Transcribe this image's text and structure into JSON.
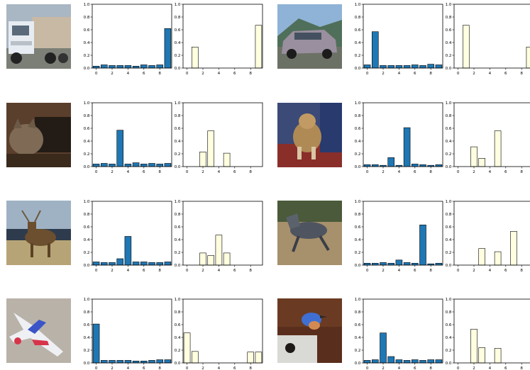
{
  "images": [
    {
      "name": "truck-image"
    },
    {
      "name": "car-image"
    },
    {
      "name": "cat-image"
    },
    {
      "name": "dog-image"
    },
    {
      "name": "deer-image"
    },
    {
      "name": "horse-image"
    },
    {
      "name": "airplane-image"
    },
    {
      "name": "bird-image"
    }
  ],
  "chart_data": [
    {
      "type": "bar",
      "row": 0,
      "col": 0,
      "color": "#1f77b4",
      "categories": [
        0,
        1,
        2,
        3,
        4,
        5,
        6,
        7,
        8,
        9
      ],
      "values": [
        0.03,
        0.05,
        0.04,
        0.04,
        0.04,
        0.03,
        0.05,
        0.04,
        0.05,
        0.62
      ],
      "ylim": [
        0,
        1.0
      ],
      "yticks": [
        "0.0",
        "0.2",
        "0.4",
        "0.6",
        "0.8",
        "1.0"
      ],
      "xticks": [
        "0",
        "2",
        "4",
        "6",
        "8"
      ],
      "xlim": [
        -0.5,
        9.5
      ]
    },
    {
      "type": "bar",
      "row": 0,
      "col": 1,
      "color": "#ffffe0",
      "categories": [
        0,
        1,
        2,
        3,
        4,
        5,
        6,
        7,
        8,
        9
      ],
      "values": [
        0,
        0.33,
        0,
        0,
        0,
        0,
        0,
        0,
        0,
        0.67
      ],
      "ylim": [
        0,
        1.0
      ],
      "yticks": [
        "0.0",
        "0.2",
        "0.4",
        "0.6",
        "0.8",
        "1.0"
      ],
      "xticks": [
        "0",
        "2",
        "4",
        "6",
        "8"
      ],
      "xlim": [
        -0.5,
        9.5
      ]
    },
    {
      "type": "bar",
      "row": 0,
      "col": 2,
      "color": "#1f77b4",
      "categories": [
        0,
        1,
        2,
        3,
        4,
        5,
        6,
        7,
        8,
        9
      ],
      "values": [
        0.05,
        0.57,
        0.04,
        0.04,
        0.04,
        0.04,
        0.05,
        0.04,
        0.06,
        0.05
      ],
      "ylim": [
        0,
        1.0
      ],
      "yticks": [
        "0.0",
        "0.2",
        "0.4",
        "0.6",
        "0.8",
        "1.0"
      ],
      "xticks": [
        "0",
        "2",
        "4",
        "6",
        "8"
      ],
      "xlim": [
        -0.5,
        9.5
      ]
    },
    {
      "type": "bar",
      "row": 0,
      "col": 3,
      "color": "#ffffe0",
      "categories": [
        0,
        1,
        2,
        3,
        4,
        5,
        6,
        7,
        8,
        9
      ],
      "values": [
        0,
        0.67,
        0,
        0,
        0,
        0,
        0,
        0,
        0,
        0.33
      ],
      "ylim": [
        0,
        1.0
      ],
      "yticks": [
        "0.0",
        "0.2",
        "0.4",
        "0.6",
        "0.8",
        "1.0"
      ],
      "xticks": [
        "0",
        "2",
        "4",
        "6",
        "8"
      ],
      "xlim": [
        -0.5,
        9.5
      ]
    },
    {
      "type": "bar",
      "row": 1,
      "col": 0,
      "color": "#1f77b4",
      "categories": [
        0,
        1,
        2,
        3,
        4,
        5,
        6,
        7,
        8,
        9
      ],
      "values": [
        0.04,
        0.05,
        0.04,
        0.57,
        0.04,
        0.06,
        0.04,
        0.05,
        0.04,
        0.05
      ],
      "ylim": [
        0,
        1.0
      ],
      "yticks": [
        "0.0",
        "0.2",
        "0.4",
        "0.6",
        "0.8",
        "1.0"
      ],
      "xticks": [
        "0",
        "2",
        "4",
        "6",
        "8"
      ],
      "xlim": [
        -0.5,
        9.5
      ]
    },
    {
      "type": "bar",
      "row": 1,
      "col": 1,
      "color": "#ffffe0",
      "categories": [
        0,
        1,
        2,
        3,
        4,
        5,
        6,
        7,
        8,
        9
      ],
      "values": [
        0,
        0,
        0.23,
        0.56,
        0,
        0.21,
        0,
        0,
        0,
        0
      ],
      "ylim": [
        0,
        1.0
      ],
      "yticks": [
        "0.0",
        "0.2",
        "0.4",
        "0.6",
        "0.8",
        "1.0"
      ],
      "xticks": [
        "0",
        "2",
        "4",
        "6",
        "8"
      ],
      "xlim": [
        -0.5,
        9.5
      ]
    },
    {
      "type": "bar",
      "row": 1,
      "col": 2,
      "color": "#1f77b4",
      "categories": [
        0,
        1,
        2,
        3,
        4,
        5,
        6,
        7,
        8,
        9
      ],
      "values": [
        0.03,
        0.03,
        0.02,
        0.14,
        0.02,
        0.61,
        0.04,
        0.03,
        0.02,
        0.03
      ],
      "ylim": [
        0,
        1.0
      ],
      "yticks": [
        "0.0",
        "0.2",
        "0.4",
        "0.6",
        "0.8",
        "1.0"
      ],
      "xticks": [
        "0",
        "2",
        "4",
        "6",
        "8"
      ],
      "xlim": [
        -0.5,
        9.5
      ]
    },
    {
      "type": "bar",
      "row": 1,
      "col": 3,
      "color": "#ffffe0",
      "categories": [
        0,
        1,
        2,
        3,
        4,
        5,
        6,
        7,
        8,
        9
      ],
      "values": [
        0,
        0,
        0.31,
        0.13,
        0,
        0.56,
        0,
        0,
        0,
        0
      ],
      "ylim": [
        0,
        1.0
      ],
      "yticks": [
        "0.0",
        "0.2",
        "0.4",
        "0.6",
        "0.8",
        "1.0"
      ],
      "xticks": [
        "0",
        "2",
        "4",
        "6",
        "8"
      ],
      "xlim": [
        -0.5,
        9.5
      ]
    },
    {
      "type": "bar",
      "row": 2,
      "col": 0,
      "color": "#1f77b4",
      "categories": [
        0,
        1,
        2,
        3,
        4,
        5,
        6,
        7,
        8,
        9
      ],
      "values": [
        0.05,
        0.04,
        0.04,
        0.1,
        0.45,
        0.05,
        0.05,
        0.04,
        0.04,
        0.05
      ],
      "ylim": [
        0,
        1.0
      ],
      "yticks": [
        "0.0",
        "0.2",
        "0.4",
        "0.6",
        "0.8",
        "1.0"
      ],
      "xticks": [
        "0",
        "2",
        "4",
        "6",
        "8"
      ],
      "xlim": [
        -0.5,
        9.5
      ]
    },
    {
      "type": "bar",
      "row": 2,
      "col": 1,
      "color": "#ffffe0",
      "categories": [
        0,
        1,
        2,
        3,
        4,
        5,
        6,
        7,
        8,
        9
      ],
      "values": [
        0,
        0,
        0.19,
        0.15,
        0.47,
        0.19,
        0,
        0,
        0,
        0
      ],
      "ylim": [
        0,
        1.0
      ],
      "yticks": [
        "0.0",
        "0.2",
        "0.4",
        "0.6",
        "0.8",
        "1.0"
      ],
      "xticks": [
        "0",
        "2",
        "4",
        "6",
        "8"
      ],
      "xlim": [
        -0.5,
        9.5
      ]
    },
    {
      "type": "bar",
      "row": 2,
      "col": 2,
      "color": "#1f77b4",
      "categories": [
        0,
        1,
        2,
        3,
        4,
        5,
        6,
        7,
        8,
        9
      ],
      "values": [
        0.03,
        0.03,
        0.04,
        0.03,
        0.08,
        0.04,
        0.03,
        0.63,
        0.02,
        0.03
      ],
      "ylim": [
        0,
        1.0
      ],
      "yticks": [
        "0.0",
        "0.2",
        "0.4",
        "0.6",
        "0.8",
        "1.0"
      ],
      "xticks": [
        "0",
        "2",
        "4",
        "6",
        "8"
      ],
      "xlim": [
        -0.5,
        9.5
      ]
    },
    {
      "type": "bar",
      "row": 2,
      "col": 3,
      "color": "#ffffe0",
      "categories": [
        0,
        1,
        2,
        3,
        4,
        5,
        6,
        7,
        8,
        9
      ],
      "values": [
        0,
        0,
        0,
        0.26,
        0,
        0.21,
        0,
        0.53,
        0,
        0
      ],
      "ylim": [
        0,
        1.0
      ],
      "yticks": [
        "0.0",
        "0.2",
        "0.4",
        "0.6",
        "0.8",
        "1.0"
      ],
      "xticks": [
        "0",
        "2",
        "4",
        "6",
        "8"
      ],
      "xlim": [
        -0.5,
        9.5
      ]
    },
    {
      "type": "bar",
      "row": 3,
      "col": 0,
      "color": "#1f77b4",
      "categories": [
        0,
        1,
        2,
        3,
        4,
        5,
        6,
        7,
        8,
        9
      ],
      "values": [
        0.61,
        0.04,
        0.04,
        0.04,
        0.04,
        0.03,
        0.03,
        0.04,
        0.05,
        0.05
      ],
      "ylim": [
        0,
        1.0
      ],
      "yticks": [
        "0.0",
        "0.2",
        "0.4",
        "0.6",
        "0.8",
        "1.0"
      ],
      "xticks": [
        "0",
        "2",
        "4",
        "6",
        "8"
      ],
      "xlim": [
        -0.5,
        9.5
      ]
    },
    {
      "type": "bar",
      "row": 3,
      "col": 1,
      "color": "#ffffe0",
      "categories": [
        0,
        1,
        2,
        3,
        4,
        5,
        6,
        7,
        8,
        9
      ],
      "values": [
        0.47,
        0.18,
        0,
        0,
        0,
        0,
        0,
        0,
        0.17,
        0.17
      ],
      "ylim": [
        0,
        1.0
      ],
      "yticks": [
        "0.0",
        "0.2",
        "0.4",
        "0.6",
        "0.8",
        "1.0"
      ],
      "xticks": [
        "0",
        "2",
        "4",
        "6",
        "8"
      ],
      "xlim": [
        -0.5,
        9.5
      ]
    },
    {
      "type": "bar",
      "row": 3,
      "col": 2,
      "color": "#1f77b4",
      "categories": [
        0,
        1,
        2,
        3,
        4,
        5,
        6,
        7,
        8,
        9
      ],
      "values": [
        0.04,
        0.05,
        0.47,
        0.1,
        0.05,
        0.04,
        0.05,
        0.04,
        0.05,
        0.05
      ],
      "ylim": [
        0,
        1.0
      ],
      "yticks": [
        "0.0",
        "0.2",
        "0.4",
        "0.6",
        "0.8",
        "1.0"
      ],
      "xticks": [
        "0",
        "2",
        "4",
        "6",
        "8"
      ],
      "xlim": [
        -0.5,
        9.5
      ]
    },
    {
      "type": "bar",
      "row": 3,
      "col": 3,
      "color": "#ffffe0",
      "categories": [
        0,
        1,
        2,
        3,
        4,
        5,
        6,
        7,
        8,
        9
      ],
      "values": [
        0,
        0,
        0.53,
        0.24,
        0,
        0.23,
        0,
        0,
        0,
        0
      ],
      "ylim": [
        0,
        1.0
      ],
      "yticks": [
        "0.0",
        "0.2",
        "0.4",
        "0.6",
        "0.8",
        "1.0"
      ],
      "xticks": [
        "0",
        "2",
        "4",
        "6",
        "8"
      ],
      "xlim": [
        -0.5,
        9.5
      ]
    }
  ]
}
